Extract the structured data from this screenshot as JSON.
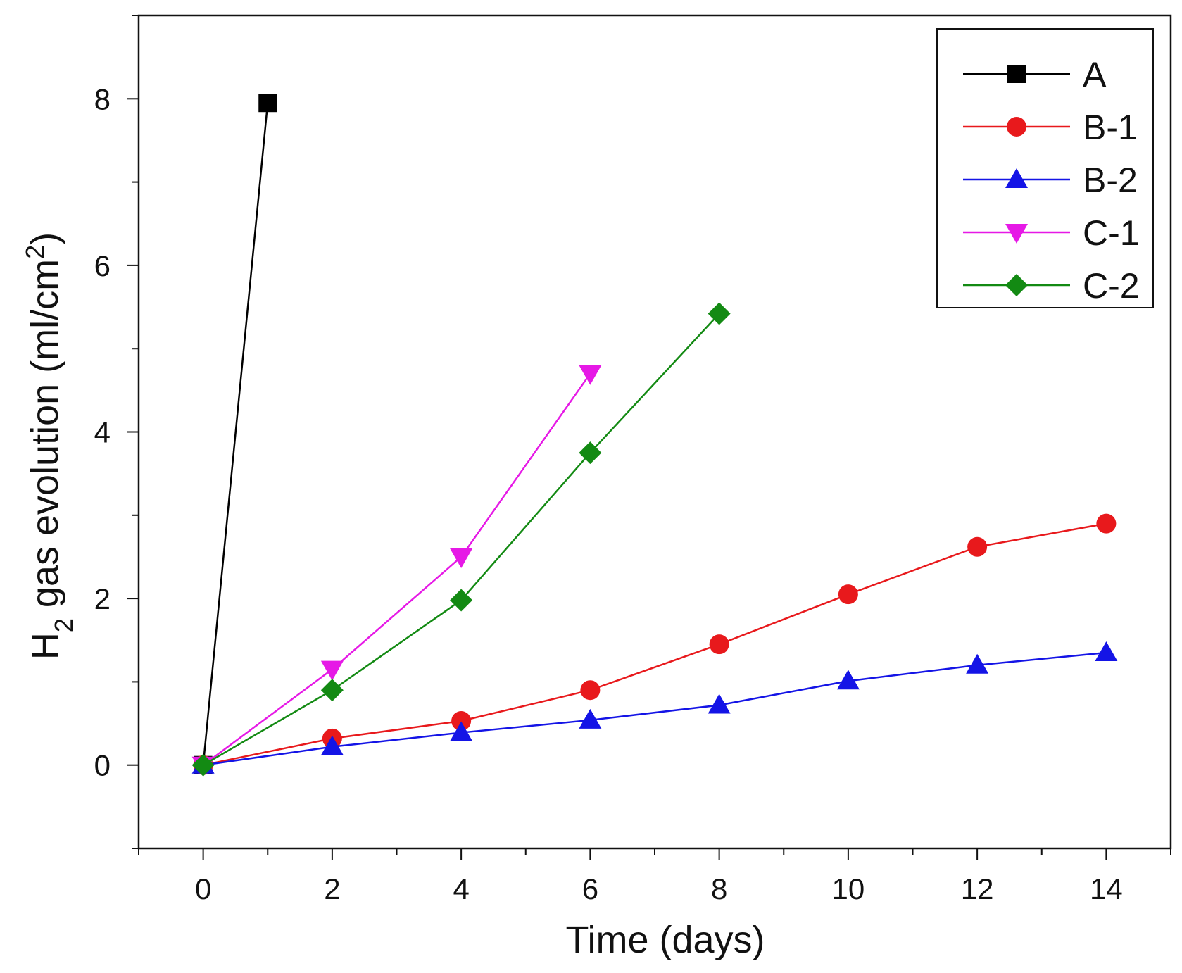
{
  "chart_data": {
    "type": "line",
    "title": "",
    "xlabel": "Time (days)",
    "ylabel_main": "H",
    "ylabel_sub": "2",
    "ylabel_rest": " gas evolution (ml/cm",
    "ylabel_sup": "2",
    "ylabel_end": ")",
    "xlim": [
      -1,
      15
    ],
    "ylim": [
      -1,
      9
    ],
    "xticks": [
      0,
      2,
      4,
      6,
      8,
      10,
      12,
      14
    ],
    "yticks": [
      0,
      2,
      4,
      6,
      8
    ],
    "legend_position": "top-right",
    "series": [
      {
        "name": "A",
        "color": "#000000",
        "marker": "square",
        "x": [
          0,
          1
        ],
        "y": [
          0,
          7.95
        ]
      },
      {
        "name": "B-1",
        "color": "#e8191c",
        "marker": "circle",
        "x": [
          0,
          2,
          4,
          6,
          8,
          10,
          12,
          14
        ],
        "y": [
          0,
          0.32,
          0.53,
          0.9,
          1.45,
          2.05,
          2.62,
          2.9
        ]
      },
      {
        "name": "B-2",
        "color": "#1414e6",
        "marker": "triangle-up",
        "x": [
          0,
          2,
          4,
          6,
          8,
          10,
          12,
          14
        ],
        "y": [
          0,
          0.22,
          0.39,
          0.54,
          0.72,
          1.01,
          1.2,
          1.35
        ]
      },
      {
        "name": "C-1",
        "color": "#e619e6",
        "marker": "triangle-down",
        "x": [
          0,
          2,
          4,
          6
        ],
        "y": [
          0,
          1.15,
          2.5,
          4.7
        ]
      },
      {
        "name": "C-2",
        "color": "#138a13",
        "marker": "diamond",
        "x": [
          0,
          2,
          4,
          6,
          8
        ],
        "y": [
          0,
          0.9,
          1.98,
          3.75,
          5.42
        ]
      }
    ]
  }
}
